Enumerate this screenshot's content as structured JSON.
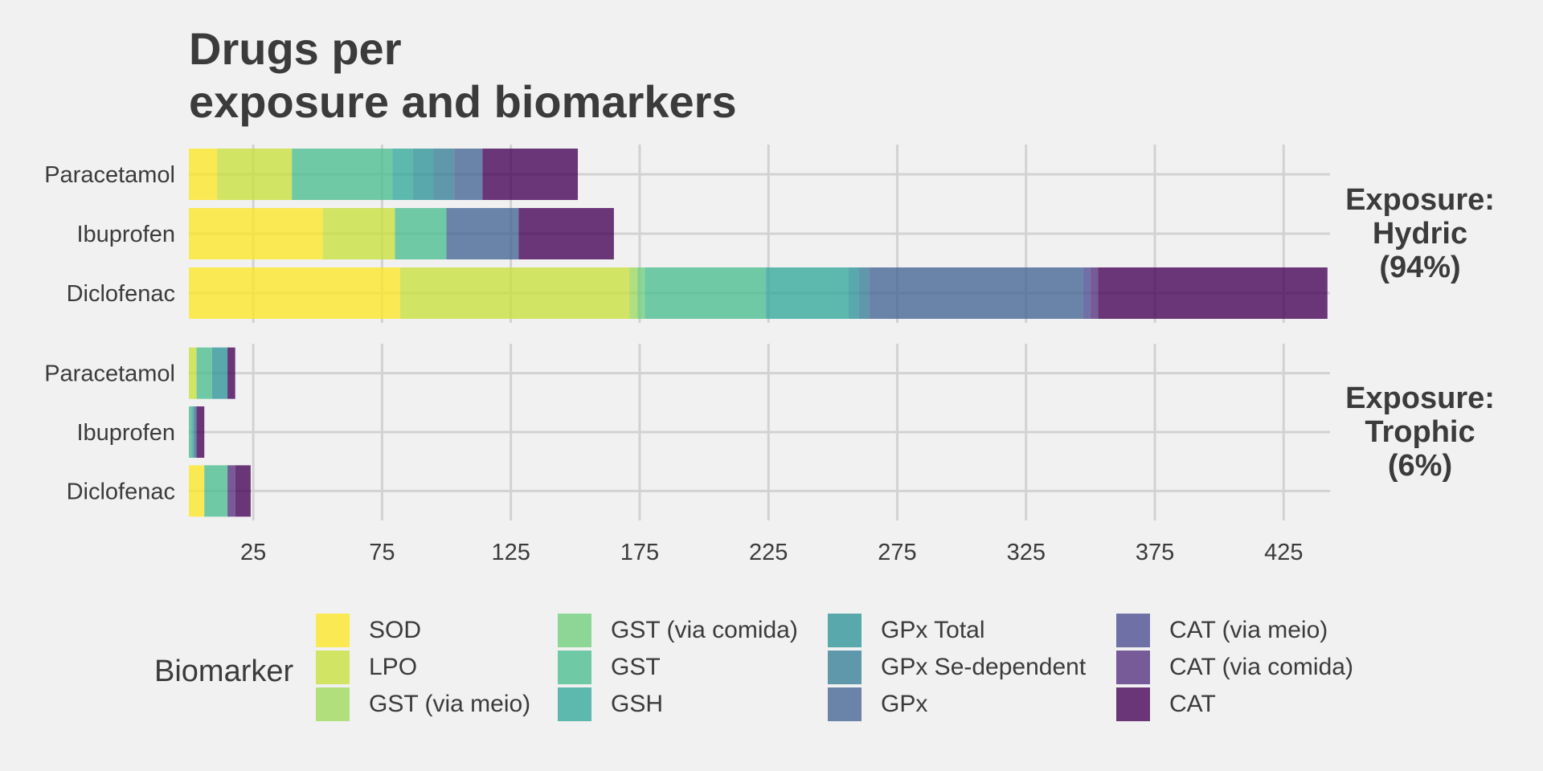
{
  "chart_data": {
    "type": "bar",
    "orientation": "horizontal",
    "stacked": true,
    "title": "Drugs per\nexposure and biomarkers",
    "xlabel": "",
    "ylabel": "",
    "xlim": [
      0,
      443
    ],
    "x_ticks": [
      25,
      75,
      125,
      175,
      225,
      275,
      325,
      375,
      425
    ],
    "grid": true,
    "categories": [
      "Paracetamol",
      "Ibuprofen",
      "Diclofenac"
    ],
    "facets": [
      {
        "label": "Exposure:\nHydric\n(94%)"
      },
      {
        "label": "Exposure:\nTrophic\n(6%)"
      }
    ],
    "legend_title": "Biomarker",
    "legend_position": "bottom",
    "series": [
      {
        "name": "SOD",
        "color": "#fde725",
        "values": {
          "Exposure:\nHydric\n(94%)": [
            11,
            52,
            82
          ],
          "Exposure:\nTrophic\n(6%)": [
            0,
            0,
            6
          ]
        }
      },
      {
        "name": "LPO",
        "color": "#c8e03b",
        "values": {
          "Exposure:\nHydric\n(94%)": [
            29,
            28,
            89
          ],
          "Exposure:\nTrophic\n(6%)": [
            3,
            0,
            0
          ]
        }
      },
      {
        "name": "GST (via meio)",
        "color": "#9fda5b",
        "values": {
          "Exposure:\nHydric\n(94%)": [
            0,
            0,
            3
          ],
          "Exposure:\nTrophic\n(6%)": [
            0,
            0,
            0
          ]
        }
      },
      {
        "name": "GST (via comida)",
        "color": "#6fcf7c",
        "values": {
          "Exposure:\nHydric\n(94%)": [
            0,
            0,
            3
          ],
          "Exposure:\nTrophic\n(6%)": [
            0,
            0,
            0
          ]
        }
      },
      {
        "name": "GST",
        "color": "#4cbe8f",
        "values": {
          "Exposure:\nHydric\n(94%)": [
            39,
            20,
            47
          ],
          "Exposure:\nTrophic\n(6%)": [
            6,
            1,
            9
          ]
        }
      },
      {
        "name": "GSH",
        "color": "#33a89a",
        "values": {
          "Exposure:\nHydric\n(94%)": [
            8,
            0,
            32
          ],
          "Exposure:\nTrophic\n(6%)": [
            0,
            1,
            0
          ]
        }
      },
      {
        "name": "GPx Total",
        "color": "#2d9399",
        "values": {
          "Exposure:\nHydric\n(94%)": [
            8,
            0,
            4
          ],
          "Exposure:\nTrophic\n(6%)": [
            6,
            0,
            0
          ]
        }
      },
      {
        "name": "GPx Se-dependent",
        "color": "#357f96",
        "values": {
          "Exposure:\nHydric\n(94%)": [
            8,
            0,
            4
          ],
          "Exposure:\nTrophic\n(6%)": [
            0,
            0,
            0
          ]
        }
      },
      {
        "name": "GPx",
        "color": "#436594",
        "values": {
          "Exposure:\nHydric\n(94%)": [
            11,
            28,
            83
          ],
          "Exposure:\nTrophic\n(6%)": [
            0,
            1,
            0
          ]
        }
      },
      {
        "name": "CAT (via meio)",
        "color": "#4a4b8f",
        "values": {
          "Exposure:\nHydric\n(94%)": [
            0,
            0,
            3
          ],
          "Exposure:\nTrophic\n(6%)": [
            0,
            0,
            0
          ]
        }
      },
      {
        "name": "CAT (via comida)",
        "color": "#55317f",
        "values": {
          "Exposure:\nHydric\n(94%)": [
            0,
            0,
            3
          ],
          "Exposure:\nTrophic\n(6%)": [
            0,
            0,
            3
          ]
        }
      },
      {
        "name": "CAT",
        "color": "#440154",
        "values": {
          "Exposure:\nHydric\n(94%)": [
            37,
            37,
            89
          ],
          "Exposure:\nTrophic\n(6%)": [
            3,
            3,
            6
          ]
        }
      }
    ]
  }
}
